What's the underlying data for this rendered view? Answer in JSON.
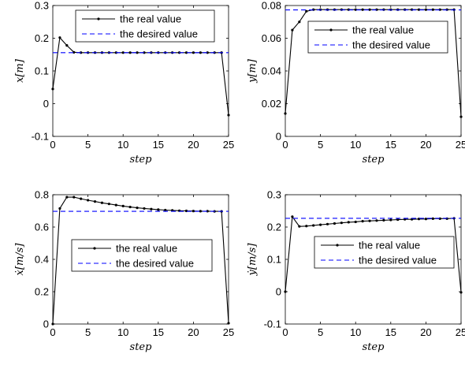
{
  "chart_data": [
    {
      "type": "line",
      "xlabel": "step",
      "ylabel": "x[m]",
      "xlim": [
        0,
        25
      ],
      "ylim": [
        -0.1,
        0.3
      ],
      "xticks": [
        "0",
        "5",
        "10",
        "15",
        "20",
        "25"
      ],
      "yticks": [
        "-0.1",
        "0",
        "0.1",
        "0.2",
        "0.3"
      ],
      "grid": false,
      "legend_position": "top-right",
      "series": [
        {
          "name": "the real value",
          "color": "#000000",
          "style": "solid-with-dots",
          "x": [
            0,
            1,
            2,
            3,
            4,
            5,
            6,
            7,
            8,
            9,
            10,
            11,
            12,
            13,
            14,
            15,
            16,
            17,
            18,
            19,
            20,
            21,
            22,
            23,
            24,
            25
          ],
          "values": [
            0.045,
            0.202,
            0.178,
            0.157,
            0.156,
            0.156,
            0.156,
            0.156,
            0.156,
            0.156,
            0.156,
            0.156,
            0.156,
            0.156,
            0.156,
            0.156,
            0.156,
            0.156,
            0.156,
            0.156,
            0.156,
            0.156,
            0.156,
            0.156,
            0.156,
            -0.035
          ]
        },
        {
          "name": "the desired value",
          "color": "#0000ff",
          "style": "dashed",
          "x": [
            0,
            25
          ],
          "values": [
            0.156,
            0.156
          ]
        }
      ]
    },
    {
      "type": "line",
      "xlabel": "step",
      "ylabel": "y[m]",
      "xlim": [
        0,
        25
      ],
      "ylim": [
        0,
        0.08
      ],
      "xticks": [
        "0",
        "5",
        "10",
        "15",
        "20",
        "25"
      ],
      "yticks": [
        "0",
        "0.02",
        "0.04",
        "0.06",
        "0.08"
      ],
      "grid": false,
      "legend_position": "top-right",
      "series": [
        {
          "name": "the real value",
          "color": "#000000",
          "style": "solid-with-dots",
          "x": [
            0,
            1,
            2,
            3,
            4,
            5,
            6,
            7,
            8,
            9,
            10,
            11,
            12,
            13,
            14,
            15,
            16,
            17,
            18,
            19,
            20,
            21,
            22,
            23,
            24,
            25
          ],
          "values": [
            0.014,
            0.065,
            0.07,
            0.0765,
            0.0775,
            0.0775,
            0.0775,
            0.0775,
            0.0775,
            0.0775,
            0.0775,
            0.0775,
            0.0775,
            0.0775,
            0.0775,
            0.0775,
            0.0775,
            0.0775,
            0.0775,
            0.0775,
            0.0775,
            0.0775,
            0.0775,
            0.0775,
            0.0775,
            0.012
          ]
        },
        {
          "name": "the desired value",
          "color": "#0000ff",
          "style": "dashed",
          "x": [
            0,
            25
          ],
          "values": [
            0.0773,
            0.0773
          ]
        }
      ]
    },
    {
      "type": "line",
      "xlabel": "step",
      "ylabel": "ẋ[m/s]",
      "xlim": [
        0,
        25
      ],
      "ylim": [
        0,
        0.8
      ],
      "xticks": [
        "0",
        "5",
        "10",
        "15",
        "20",
        "25"
      ],
      "yticks": [
        "0",
        "0.2",
        "0.4",
        "0.6",
        "0.8"
      ],
      "grid": false,
      "legend_position": "center",
      "series": [
        {
          "name": "the real value",
          "color": "#000000",
          "style": "solid-with-dots",
          "x": [
            0,
            1,
            2,
            3,
            4,
            5,
            6,
            7,
            8,
            9,
            10,
            11,
            12,
            13,
            14,
            15,
            16,
            17,
            18,
            19,
            20,
            21,
            22,
            23,
            24,
            25
          ],
          "values": [
            0.0,
            0.715,
            0.785,
            0.785,
            0.775,
            0.766,
            0.758,
            0.75,
            0.743,
            0.736,
            0.73,
            0.724,
            0.719,
            0.715,
            0.711,
            0.708,
            0.705,
            0.703,
            0.701,
            0.7,
            0.699,
            0.698,
            0.698,
            0.697,
            0.697,
            0.005
          ]
        },
        {
          "name": "the desired value",
          "color": "#0000ff",
          "style": "dashed",
          "x": [
            0,
            25
          ],
          "values": [
            0.697,
            0.697
          ]
        }
      ]
    },
    {
      "type": "line",
      "xlabel": "step",
      "ylabel": "ẏ[m/s]",
      "xlim": [
        0,
        25
      ],
      "ylim": [
        -0.1,
        0.3
      ],
      "xticks": [
        "0",
        "5",
        "10",
        "15",
        "20",
        "25"
      ],
      "yticks": [
        "-0.1",
        "0",
        "0.1",
        "0.2",
        "0.3"
      ],
      "grid": false,
      "legend_position": "top-right",
      "series": [
        {
          "name": "the real value",
          "color": "#000000",
          "style": "solid-with-dots",
          "x": [
            0,
            1,
            2,
            3,
            4,
            5,
            6,
            7,
            8,
            9,
            10,
            11,
            12,
            13,
            14,
            15,
            16,
            17,
            18,
            19,
            20,
            21,
            22,
            23,
            24,
            25
          ],
          "values": [
            0.0,
            0.232,
            0.202,
            0.203,
            0.205,
            0.207,
            0.209,
            0.211,
            0.213,
            0.215,
            0.216,
            0.218,
            0.219,
            0.22,
            0.221,
            0.222,
            0.223,
            0.224,
            0.224,
            0.225,
            0.225,
            0.226,
            0.226,
            0.226,
            0.227,
            -0.002
          ]
        },
        {
          "name": "the desired value",
          "color": "#0000ff",
          "style": "dashed",
          "x": [
            0,
            25
          ],
          "values": [
            0.227,
            0.227
          ]
        }
      ]
    }
  ]
}
